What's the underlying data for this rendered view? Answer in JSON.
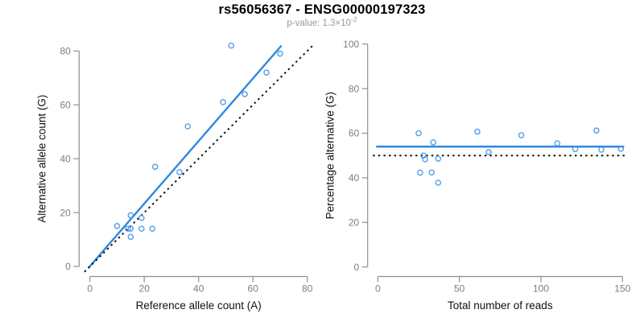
{
  "header": {
    "title": "rs56056367 - ENSG00000197323",
    "subtitle_prefix": "p-value: 1.3×10",
    "subtitle_exponent": "-2"
  },
  "colors": {
    "fit_line_blue": "#2e87e0",
    "point_blue": "#4698e8",
    "reference_black": "#111111",
    "axis_gray": "#8f8f8f",
    "tick_label_gray": "#7e7e7e",
    "axis_title_black": "#111111",
    "subtitle_gray": "#999999"
  },
  "chart_data": [
    {
      "type": "scatter",
      "panel": "left",
      "title": "",
      "xlabel": "Reference allele count (A)",
      "ylabel": "Alternative allele count (G)",
      "xlim": [
        0,
        80
      ],
      "ylim": [
        0,
        80
      ],
      "xticks": [
        0,
        20,
        40,
        60,
        80
      ],
      "yticks": [
        0,
        20,
        40,
        60,
        80
      ],
      "grid": false,
      "legend": "none",
      "points": [
        [
          10,
          15
        ],
        [
          14,
          14
        ],
        [
          15,
          14
        ],
        [
          15,
          11
        ],
        [
          15,
          19
        ],
        [
          19,
          14
        ],
        [
          19,
          18
        ],
        [
          23,
          14
        ],
        [
          24,
          37
        ],
        [
          33,
          35
        ],
        [
          36,
          52
        ],
        [
          49,
          61
        ],
        [
          52,
          82
        ],
        [
          57,
          64
        ],
        [
          65,
          72
        ],
        [
          70,
          79
        ]
      ],
      "lines": [
        {
          "name": "fit-line",
          "dashed": false,
          "color": "fit_line_blue",
          "pts": [
            [
              -0.5,
              -0.5
            ],
            [
              70.5,
              82
            ]
          ]
        },
        {
          "name": "identity-line",
          "dashed": true,
          "color": "reference_black",
          "pts": [
            [
              -2,
              -2
            ],
            [
              82,
              82
            ]
          ]
        }
      ]
    },
    {
      "type": "scatter",
      "panel": "right",
      "title": "",
      "xlabel": "Total number of reads",
      "ylabel": "Percentage alternative (G)",
      "xlim": [
        0,
        150
      ],
      "ylim": [
        0,
        100
      ],
      "xticks": [
        0,
        50,
        100,
        150
      ],
      "yticks": [
        0,
        20,
        40,
        60,
        80,
        100
      ],
      "grid": false,
      "legend": "none",
      "points": [
        [
          25,
          60.0
        ],
        [
          26,
          42.3
        ],
        [
          28,
          50.0
        ],
        [
          29,
          48.3
        ],
        [
          33,
          42.4
        ],
        [
          34,
          55.9
        ],
        [
          37,
          48.6
        ],
        [
          37,
          37.8
        ],
        [
          61,
          60.7
        ],
        [
          68,
          51.5
        ],
        [
          88,
          59.1
        ],
        [
          110,
          55.5
        ],
        [
          121,
          52.9
        ],
        [
          134,
          61.2
        ],
        [
          137,
          52.6
        ],
        [
          149,
          53.0
        ]
      ],
      "lines": [
        {
          "name": "fit-line",
          "dashed": false,
          "color": "fit_line_blue",
          "pts": [
            [
              -1,
              54
            ],
            [
              151,
              54
            ]
          ]
        },
        {
          "name": "null-line",
          "dashed": true,
          "color": "reference_black",
          "pts": [
            [
              -3,
              50
            ],
            [
              152,
              50
            ]
          ]
        }
      ]
    }
  ]
}
